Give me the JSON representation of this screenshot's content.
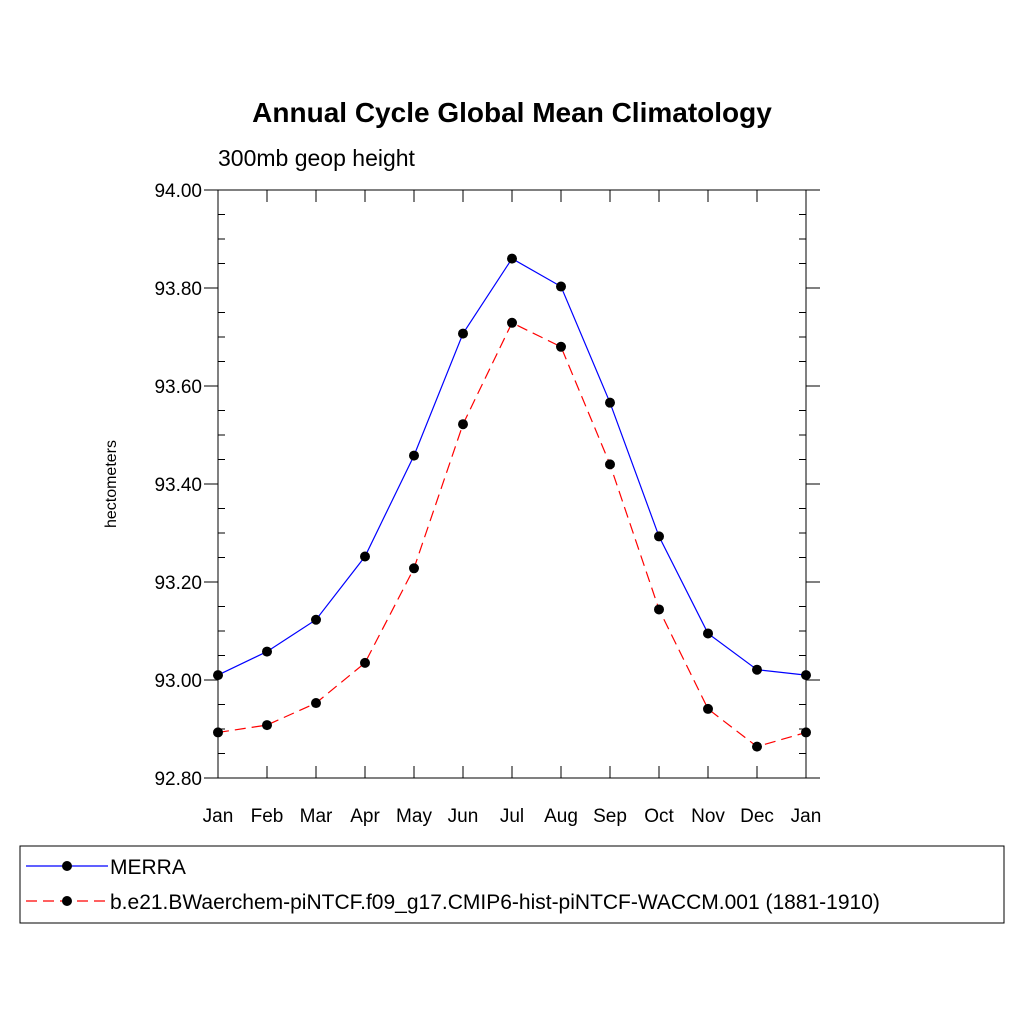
{
  "chart_data": {
    "type": "line",
    "title": "Annual Cycle Global Mean Climatology",
    "subtitle": "300mb geop height",
    "xlabel": "",
    "ylabel": "hectometers",
    "categories": [
      "Jan",
      "Feb",
      "Mar",
      "Apr",
      "May",
      "Jun",
      "Jul",
      "Aug",
      "Sep",
      "Oct",
      "Nov",
      "Dec",
      "Jan"
    ],
    "ylim": [
      92.8,
      94.0
    ],
    "yticks": [
      "92.80",
      "93.00",
      "93.20",
      "93.40",
      "93.60",
      "93.80",
      "94.00"
    ],
    "grid": false,
    "legend_position": "bottom",
    "series": [
      {
        "name": "MERRA",
        "color": "#0000ff",
        "style": "solid",
        "marker": "filled-circle",
        "values": [
          93.01,
          93.058,
          93.123,
          93.252,
          93.458,
          93.707,
          93.86,
          93.803,
          93.566,
          93.293,
          93.095,
          93.021,
          93.01
        ]
      },
      {
        "name": "b.e21.BWaerchem-piNTCF.f09_g17.CMIP6-hist-piNTCF-WACCM.001 (1881-1910)",
        "color": "#ff0000",
        "style": "dashed",
        "marker": "filled-circle",
        "values": [
          92.893,
          92.908,
          92.953,
          93.035,
          93.228,
          93.522,
          93.729,
          93.68,
          93.44,
          93.144,
          92.941,
          92.864,
          92.893
        ]
      }
    ]
  }
}
